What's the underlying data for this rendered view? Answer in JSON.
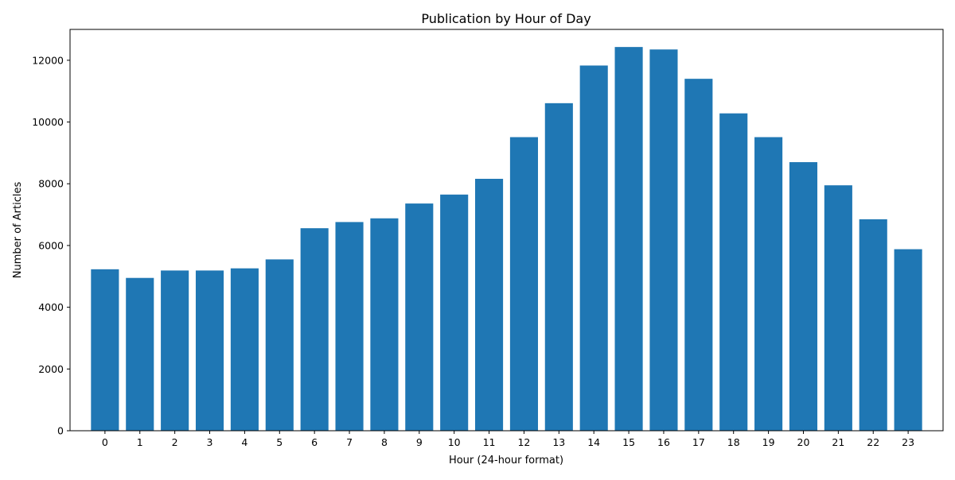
{
  "chart_data": {
    "type": "bar",
    "title": "Publication by Hour of Day",
    "xlabel": "Hour (24-hour format)",
    "ylabel": "Number of Articles",
    "categories": [
      "0",
      "1",
      "2",
      "3",
      "4",
      "5",
      "6",
      "7",
      "8",
      "9",
      "10",
      "11",
      "12",
      "13",
      "14",
      "15",
      "16",
      "17",
      "18",
      "19",
      "20",
      "21",
      "22",
      "23"
    ],
    "values": [
      5230,
      4950,
      5190,
      5190,
      5260,
      5550,
      6560,
      6760,
      6880,
      7360,
      7650,
      8160,
      9510,
      10610,
      11830,
      12430,
      12350,
      11400,
      10280,
      9510,
      8700,
      7950,
      6850,
      5880
    ],
    "yticks": [
      0,
      2000,
      4000,
      6000,
      8000,
      10000,
      12000
    ],
    "ylim": [
      0,
      13000
    ],
    "bar_color": "#1f77b4",
    "grid": false,
    "legend": "none"
  }
}
